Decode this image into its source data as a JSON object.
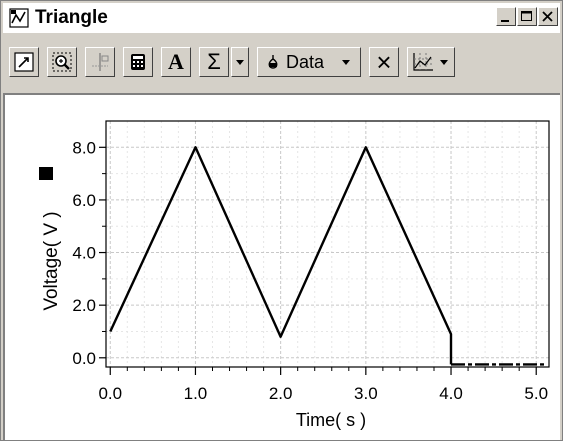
{
  "window": {
    "title": "Triangle",
    "minimize_label": "_",
    "close_label": "×"
  },
  "toolbar": {
    "buttons": [
      {
        "icon": "autoscale-icon"
      },
      {
        "icon": "zoom-icon"
      },
      {
        "icon": "examine-icon"
      },
      {
        "icon": "calculator-icon"
      },
      {
        "icon": "text-annotation-icon",
        "label": "A"
      },
      {
        "icon": "statistics-icon",
        "label": "Σ"
      },
      {
        "icon": "dropdown-arrow-icon"
      },
      {
        "icon": "data-icon",
        "label": "Data"
      },
      {
        "icon": "close-x-icon",
        "label": "×"
      },
      {
        "icon": "graph-options-icon"
      }
    ]
  },
  "chart_data": {
    "type": "line",
    "title": "",
    "xlabel": "Time( s )",
    "ylabel": "Voltage( V )",
    "xlim": [
      -0.05,
      5.15
    ],
    "ylim": [
      -0.35,
      9.0
    ],
    "x_ticks": [
      "0.0",
      "1.0",
      "2.0",
      "3.0",
      "4.0",
      "5.0"
    ],
    "y_ticks": [
      "0.0",
      "2.0",
      "4.0",
      "6.0",
      "8.0"
    ],
    "grid": true,
    "series": [
      {
        "name": "",
        "color": "#000000",
        "x": [
          0.0,
          1.0,
          2.0,
          3.0,
          4.0,
          4.0,
          4.5,
          5.1
        ],
        "y": [
          1.0,
          8.0,
          0.8,
          8.0,
          0.9,
          -0.25,
          -0.25,
          -0.25
        ]
      }
    ]
  }
}
